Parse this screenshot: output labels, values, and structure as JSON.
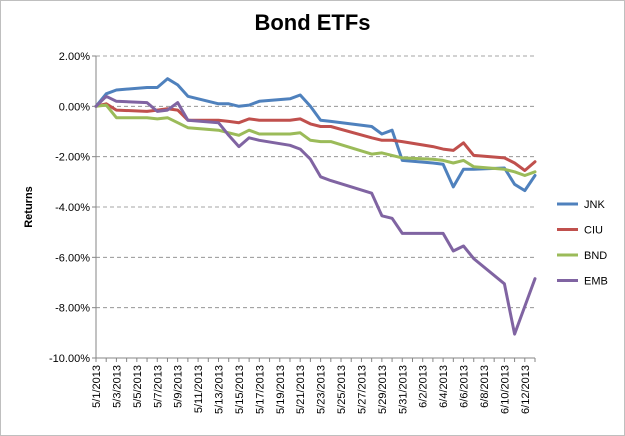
{
  "chart_data": {
    "type": "line",
    "title": "Bond ETFs",
    "xlabel": "",
    "ylabel": "Returns",
    "ylim": [
      -0.1,
      0.02
    ],
    "yticks": [
      0.02,
      0.0,
      -0.02,
      -0.04,
      -0.06,
      -0.08,
      -0.1
    ],
    "ytick_labels": [
      "2.00%",
      "0.00%",
      "-2.00%",
      "-4.00%",
      "-6.00%",
      "-8.00%",
      "-10.00%"
    ],
    "grid": "horizontal dashed",
    "legend_position": "right",
    "x": [
      "5/1/2013",
      "5/2/2013",
      "5/3/2013",
      "5/6/2013",
      "5/7/2013",
      "5/8/2013",
      "5/9/2013",
      "5/10/2013",
      "5/13/2013",
      "5/14/2013",
      "5/15/2013",
      "5/16/2013",
      "5/17/2013",
      "5/20/2013",
      "5/21/2013",
      "5/22/2013",
      "5/23/2013",
      "5/24/2013",
      "5/28/2013",
      "5/29/2013",
      "5/30/2013",
      "5/31/2013",
      "6/3/2013",
      "6/4/2013",
      "6/5/2013",
      "6/6/2013",
      "6/7/2013",
      "6/10/2013",
      "6/11/2013",
      "6/12/2013",
      "6/13/2013"
    ],
    "x_tick_labels": [
      "5/1/2013",
      "5/3/2013",
      "5/5/2013",
      "5/7/2013",
      "5/9/2013",
      "5/11/2013",
      "5/13/2013",
      "5/15/2013",
      "5/17/2013",
      "5/19/2013",
      "5/21/2013",
      "5/23/2013",
      "5/25/2013",
      "5/27/2013",
      "5/29/2013",
      "5/31/2013",
      "6/2/2013",
      "6/4/2013",
      "6/6/2013",
      "6/8/2013",
      "6/10/2013",
      "6/12/2013"
    ],
    "series": [
      {
        "name": "JNK",
        "color": "#4f81bd",
        "values": [
          0.0,
          0.005,
          0.0065,
          0.0075,
          0.0075,
          0.011,
          0.0085,
          0.004,
          0.001,
          0.001,
          0.0,
          0.0005,
          0.002,
          0.003,
          0.0045,
          0.0,
          -0.0055,
          -0.006,
          -0.008,
          -0.011,
          -0.0095,
          -0.0215,
          -0.0225,
          -0.023,
          -0.032,
          -0.025,
          -0.025,
          -0.0245,
          -0.031,
          -0.0335,
          -0.0275
        ]
      },
      {
        "name": "CIU",
        "color": "#c0504d",
        "values": [
          0.0,
          0.001,
          -0.0015,
          -0.002,
          -0.0015,
          -0.001,
          -0.0015,
          -0.0055,
          -0.0055,
          -0.006,
          -0.0065,
          -0.005,
          -0.0055,
          -0.0055,
          -0.005,
          -0.007,
          -0.008,
          -0.008,
          -0.0125,
          -0.0135,
          -0.0135,
          -0.014,
          -0.016,
          -0.017,
          -0.0175,
          -0.0145,
          -0.0195,
          -0.0205,
          -0.0225,
          -0.0255,
          -0.022
        ]
      },
      {
        "name": "BND",
        "color": "#9bbb59",
        "values": [
          0.0,
          0.0005,
          -0.0045,
          -0.0045,
          -0.005,
          -0.0045,
          -0.0065,
          -0.0085,
          -0.0095,
          -0.0105,
          -0.0115,
          -0.0095,
          -0.011,
          -0.011,
          -0.0105,
          -0.0135,
          -0.014,
          -0.014,
          -0.019,
          -0.0185,
          -0.0195,
          -0.0205,
          -0.021,
          -0.0215,
          -0.0225,
          -0.0215,
          -0.024,
          -0.025,
          -0.026,
          -0.0275,
          -0.026
        ]
      },
      {
        "name": "EMB",
        "color": "#8064a2",
        "values": [
          0.0,
          0.004,
          0.002,
          0.0015,
          -0.002,
          -0.0015,
          0.0015,
          -0.0055,
          -0.0065,
          -0.0115,
          -0.016,
          -0.0125,
          -0.0135,
          -0.0155,
          -0.017,
          -0.021,
          -0.028,
          -0.0295,
          -0.0345,
          -0.0435,
          -0.0445,
          -0.0505,
          -0.0505,
          -0.0505,
          -0.0575,
          -0.0555,
          -0.0605,
          -0.0705,
          -0.0905,
          -0.0795,
          -0.0685
        ]
      }
    ]
  }
}
